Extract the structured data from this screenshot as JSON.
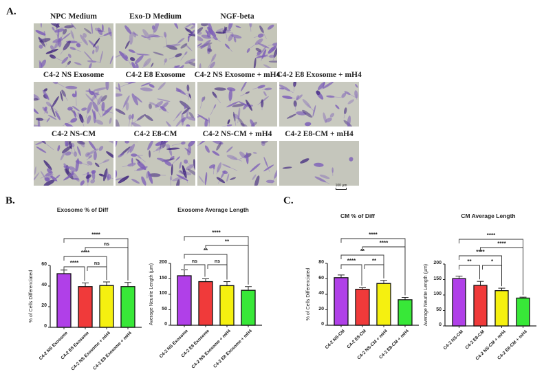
{
  "panels": {
    "a_label": "A.",
    "b_label": "B.",
    "c_label": "C."
  },
  "micrographs": {
    "row1": [
      {
        "label": "NPC Medium",
        "density": 0.9,
        "tint": "#c3c5b8"
      },
      {
        "label": "Exo-D Medium",
        "density": 0.8,
        "tint": "#c5c7ba"
      },
      {
        "label": "NGF-beta",
        "density": 0.85,
        "tint": "#c4c5b8"
      }
    ],
    "row2": [
      {
        "label": "C4-2 NS Exosome",
        "density": 0.9,
        "tint": "#c6c7bc"
      },
      {
        "label": "C4-2 E8 Exosome",
        "density": 0.7,
        "tint": "#c9cac0"
      },
      {
        "label": "C4-2 NS Exosome + mH4",
        "density": 0.55,
        "tint": "#c7c8bd"
      },
      {
        "label": "C4-2 E8 Exosome + mH4",
        "density": 0.5,
        "tint": "#c9cac0"
      }
    ],
    "row3": [
      {
        "label": "C4-2 NS-CM",
        "density": 1.0,
        "tint": "#c5c6bb"
      },
      {
        "label": "C4-2 E8-CM",
        "density": 0.9,
        "tint": "#c6c7bc"
      },
      {
        "label": "C4-2 NS-CM + mH4",
        "density": 0.5,
        "tint": "#c7c8bd"
      },
      {
        "label": "C4-2 E8-CM + mH4",
        "density": 0.08,
        "tint": "#c5c6bc"
      }
    ],
    "scale_bar": "100 µm"
  },
  "chart_data": [
    {
      "id": "B1",
      "type": "bar",
      "title": "Exosome % of Diff",
      "ylabel": "% of Cells Differenciated",
      "xlabel": "",
      "ylim": [
        0,
        60
      ],
      "yticks": [
        0,
        20,
        40,
        60
      ],
      "categories": [
        "C4-2 NS Exosome",
        "C4-2 E8 Exosome",
        "C4-2 NS Exosome + mH4",
        "C4-2 E8 Exosome + mH4"
      ],
      "values": [
        52,
        39.5,
        40.5,
        39.5
      ],
      "errors": [
        3.5,
        3.5,
        3.5,
        4
      ],
      "colors": [
        "#b040e8",
        "#f03a3a",
        "#f5f010",
        "#38e838"
      ],
      "significance": [
        {
          "from": 0,
          "to": 1,
          "label": "****"
        },
        {
          "from": 1,
          "to": 2,
          "label": "ns"
        },
        {
          "from": 0,
          "to": 2,
          "label": "****"
        },
        {
          "from": 1,
          "to": 3,
          "label": "ns"
        },
        {
          "from": 0,
          "to": 3,
          "label": "****"
        }
      ],
      "grid": false,
      "legend": "none"
    },
    {
      "id": "B2",
      "type": "bar",
      "title": "Exosome Average Length",
      "ylabel": "Average Neurite Length (µm)",
      "xlabel": "",
      "ylim": [
        0,
        200
      ],
      "yticks": [
        0,
        50,
        100,
        150,
        200
      ],
      "categories": [
        "C4-2 NS Exosome",
        "C4-2 E8 Exosome",
        "C4-2 NS Exosome + mH4",
        "C4-2 E8 Exosome + mH4"
      ],
      "values": [
        160,
        141,
        128,
        113
      ],
      "errors": [
        19,
        9,
        13,
        12
      ],
      "colors": [
        "#b040e8",
        "#f03a3a",
        "#f5f010",
        "#38e838"
      ],
      "significance": [
        {
          "from": 0,
          "to": 1,
          "label": "ns"
        },
        {
          "from": 1,
          "to": 2,
          "label": "ns"
        },
        {
          "from": 0,
          "to": 2,
          "label": "**"
        },
        {
          "from": 1,
          "to": 3,
          "label": "**"
        },
        {
          "from": 0,
          "to": 3,
          "label": "****"
        }
      ],
      "grid": false,
      "legend": "none"
    },
    {
      "id": "C1",
      "type": "bar",
      "title": "CM % of Diff",
      "ylabel": "% of Cells Differenciated",
      "xlabel": "",
      "ylim": [
        0,
        80
      ],
      "yticks": [
        0,
        20,
        40,
        60,
        80
      ],
      "categories": [
        "C4-2 NS-CM",
        "C4-2 E8-CM",
        "C4-2 NS-CM + mH4",
        "C4-2 E8-CM + mH4"
      ],
      "values": [
        61.5,
        46.5,
        54,
        33
      ],
      "errors": [
        3.5,
        2,
        4,
        3
      ],
      "colors": [
        "#b040e8",
        "#f03a3a",
        "#f5f010",
        "#38e838"
      ],
      "significance": [
        {
          "from": 0,
          "to": 1,
          "label": "****"
        },
        {
          "from": 1,
          "to": 2,
          "label": "**"
        },
        {
          "from": 0,
          "to": 2,
          "label": "**"
        },
        {
          "from": 1,
          "to": 3,
          "label": "****"
        },
        {
          "from": 0,
          "to": 3,
          "label": "****"
        }
      ],
      "grid": false,
      "legend": "none"
    },
    {
      "id": "C2",
      "type": "bar",
      "title": "CM Average Length",
      "ylabel": "Average Neurite Length (µm)",
      "xlabel": "",
      "ylim": [
        0,
        200
      ],
      "yticks": [
        0,
        50,
        100,
        150,
        200
      ],
      "categories": [
        "C4-2 NS-CM",
        "C4-2 E8-CM",
        "C4-2 NS-CM + mH4",
        "C4-2 E8-CM + mH4"
      ],
      "values": [
        153,
        131,
        114,
        90
      ],
      "errors": [
        8,
        13,
        8,
        3
      ],
      "colors": [
        "#b040e8",
        "#f03a3a",
        "#f5f010",
        "#38e838"
      ],
      "significance": [
        {
          "from": 0,
          "to": 1,
          "label": "**"
        },
        {
          "from": 1,
          "to": 2,
          "label": "*"
        },
        {
          "from": 0,
          "to": 2,
          "label": "****"
        },
        {
          "from": 1,
          "to": 3,
          "label": "****"
        },
        {
          "from": 0,
          "to": 3,
          "label": "****"
        }
      ],
      "grid": false,
      "legend": "none"
    }
  ]
}
